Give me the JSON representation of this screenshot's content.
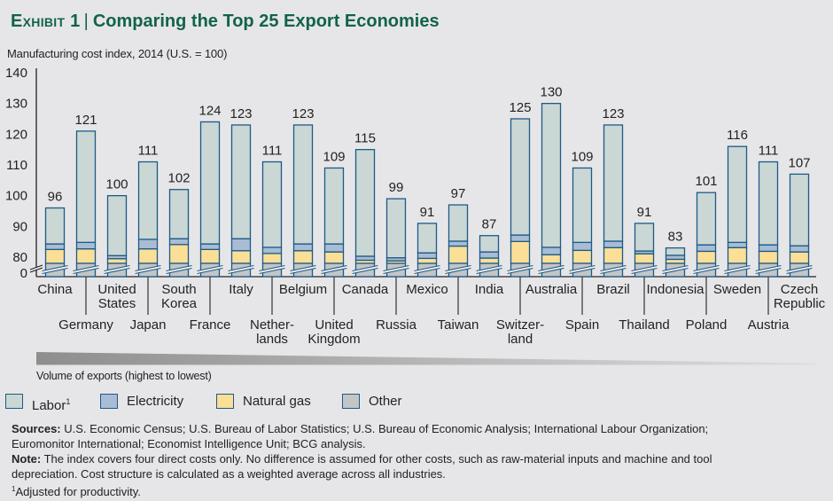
{
  "title": {
    "exhibit": "Exhibit 1",
    "separator": "|",
    "text": "Comparing the Top 25 Export Economies"
  },
  "subtitle": "Manufacturing cost index, 2014 (U.S. = 100)",
  "chart_data": {
    "type": "bar",
    "stacked": true,
    "title": "Comparing the Top 25 Export Economies",
    "ylabel": "Manufacturing cost index, 2014 (U.S. = 100)",
    "xlabel": "Volume of exports (highest to lowest)",
    "ylim": [
      0,
      140
    ],
    "y_axis_break": "between 0 and 80",
    "y_ticks": [
      140,
      130,
      120,
      110,
      100,
      90,
      80,
      0
    ],
    "grid": false,
    "legend_position": "bottom-left",
    "categories": [
      "China",
      "Germany",
      "United States",
      "Japan",
      "South Korea",
      "France",
      "Italy",
      "Netherlands",
      "Belgium",
      "United Kingdom",
      "Canada",
      "Russia",
      "Mexico",
      "Taiwan",
      "India",
      "Switzerland",
      "Australia",
      "Spain",
      "Brazil",
      "Thailand",
      "Indonesia",
      "Poland",
      "Sweden",
      "Austria",
      "Czech Republic"
    ],
    "category_label_lines": [
      [
        "China"
      ],
      [
        "Germany"
      ],
      [
        "United",
        "States"
      ],
      [
        "Japan"
      ],
      [
        "South",
        "Korea"
      ],
      [
        "France"
      ],
      [
        "Italy"
      ],
      [
        "Nether-",
        "lands"
      ],
      [
        "Belgium"
      ],
      [
        "United",
        "Kingdom"
      ],
      [
        "Canada"
      ],
      [
        "Russia"
      ],
      [
        "Mexico"
      ],
      [
        "Taiwan"
      ],
      [
        "India"
      ],
      [
        "Switzer-",
        "land"
      ],
      [
        "Australia"
      ],
      [
        "Spain"
      ],
      [
        "Brazil"
      ],
      [
        "Thailand"
      ],
      [
        "Indonesia"
      ],
      [
        "Poland"
      ],
      [
        "Sweden"
      ],
      [
        "Austria"
      ],
      [
        "Czech",
        "Republic"
      ]
    ],
    "totals": [
      96,
      121,
      100,
      111,
      102,
      124,
      123,
      111,
      123,
      109,
      115,
      99,
      91,
      97,
      87,
      125,
      130,
      109,
      123,
      91,
      83,
      101,
      116,
      111,
      107
    ],
    "series": [
      {
        "name": "Other",
        "color": "#c4c5c6",
        "values": [
          78,
          78,
          78,
          78,
          78,
          78,
          78,
          78,
          78,
          78,
          78,
          78,
          78,
          78,
          78,
          78,
          78,
          78,
          78,
          78,
          78,
          78,
          78,
          78,
          78
        ]
      },
      {
        "name": "Natural gas",
        "color": "#fbdf96",
        "values": [
          4.5,
          4.7,
          1.5,
          4.7,
          6.1,
          4.5,
          4.1,
          3.2,
          4.1,
          3.7,
          1.0,
          0.8,
          1.6,
          5.6,
          1.7,
          7.1,
          2.8,
          4.2,
          5.1,
          3.1,
          1.3,
          3.9,
          5.1,
          3.9,
          3.7
        ]
      },
      {
        "name": "Electricity",
        "color": "#a8bcd5",
        "values": [
          1.8,
          2.1,
          1.0,
          3.1,
          1.9,
          1.8,
          3.9,
          2.0,
          2.2,
          2.6,
          1.3,
          1.0,
          1.8,
          1.6,
          2.0,
          2.1,
          2.4,
          2.6,
          2.1,
          0.9,
          1.3,
          2.1,
          1.7,
          2.1,
          2.0
        ]
      },
      {
        "name": "Labor",
        "color": "#cbd7d4",
        "values": [
          11.7,
          36.2,
          19.5,
          25.2,
          16.0,
          39.7,
          37.0,
          27.8,
          38.7,
          24.7,
          34.7,
          19.2,
          9.6,
          11.8,
          5.3,
          37.8,
          46.8,
          24.2,
          37.8,
          9.0,
          2.4,
          17.0,
          31.2,
          27.0,
          23.3
        ]
      }
    ],
    "legend": [
      {
        "label": "Labor",
        "note": "1",
        "color": "#cbd7d4"
      },
      {
        "label": "Electricity",
        "note": "",
        "color": "#a8bcd5"
      },
      {
        "label": "Natural gas",
        "note": "",
        "color": "#fbdf96"
      },
      {
        "label": "Other",
        "note": "",
        "color": "#c4c5c6"
      }
    ],
    "bar_outline_color": "#1d5a87"
  },
  "footer": {
    "sources_label": "Sources:",
    "sources_lines": [
      " U.S. Economic Census; U.S. Bureau of Labor Statistics; U.S. Bureau of Economic Analysis; International Labour Organization;",
      "Euromonitor International; Economist Intelligence Unit; BCG analysis."
    ],
    "note_label": "Note:",
    "note_lines": [
      " The index covers four direct costs only. No difference is assumed for other costs, such as raw-material inputs and machine and tool",
      "depreciation. Cost structure is calculated as a weighted average across all industries."
    ],
    "footnote_marker": "1",
    "footnote_text": "Adjusted for productivity."
  }
}
